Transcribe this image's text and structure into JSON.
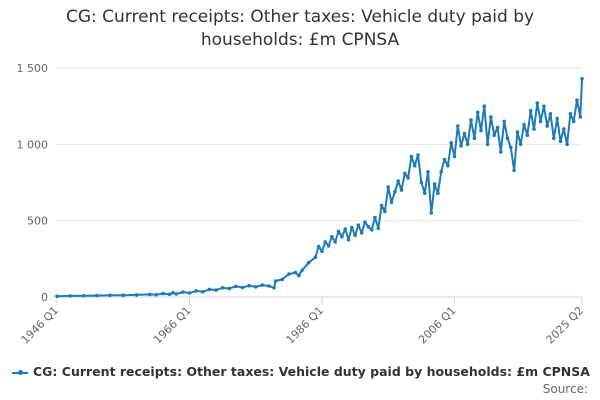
{
  "chart_data": {
    "type": "line",
    "title_line1": "CG: Current receipts: Other taxes: Vehicle duty paid by",
    "title_line2": "households: £m CPNSA",
    "xlabel": "",
    "ylabel": "",
    "ylim": [
      0,
      1500
    ],
    "yticks": [
      {
        "value": 0,
        "label": "0"
      },
      {
        "value": 500,
        "label": "500"
      },
      {
        "value": 1000,
        "label": "1 000"
      },
      {
        "value": 1500,
        "label": "1 500"
      }
    ],
    "xlim": [
      1946.0,
      2025.25
    ],
    "xticks": [
      {
        "value": 1946.0,
        "label": "1946 Q1"
      },
      {
        "value": 1966.0,
        "label": "1966 Q1"
      },
      {
        "value": 1986.0,
        "label": "1986 Q1"
      },
      {
        "value": 2006.0,
        "label": "2006 Q1"
      },
      {
        "value": 2025.25,
        "label": "2025 Q2"
      }
    ],
    "grid": "horizontal",
    "color": "#1f7ab8",
    "series": [
      {
        "name": "CG: Current receipts: Other taxes: Vehicle duty paid by households: £m CPNSA",
        "points": [
          [
            1946.0,
            5
          ],
          [
            1948.0,
            7
          ],
          [
            1950.0,
            8
          ],
          [
            1952.0,
            9
          ],
          [
            1954.0,
            11
          ],
          [
            1956.0,
            12
          ],
          [
            1958.0,
            14
          ],
          [
            1960.0,
            17
          ],
          [
            1961.0,
            15
          ],
          [
            1962.0,
            22
          ],
          [
            1963.0,
            18
          ],
          [
            1963.5,
            28
          ],
          [
            1964.0,
            20
          ],
          [
            1965.0,
            32
          ],
          [
            1966.0,
            26
          ],
          [
            1967.0,
            40
          ],
          [
            1968.0,
            34
          ],
          [
            1969.0,
            50
          ],
          [
            1970.0,
            45
          ],
          [
            1971.0,
            60
          ],
          [
            1972.0,
            55
          ],
          [
            1973.0,
            70
          ],
          [
            1974.0,
            62
          ],
          [
            1975.0,
            74
          ],
          [
            1976.0,
            66
          ],
          [
            1977.0,
            78
          ],
          [
            1978.0,
            72
          ],
          [
            1978.75,
            60
          ],
          [
            1979.0,
            105
          ],
          [
            1980.0,
            115
          ],
          [
            1981.0,
            150
          ],
          [
            1982.0,
            160
          ],
          [
            1982.5,
            140
          ],
          [
            1983.0,
            175
          ],
          [
            1984.0,
            225
          ],
          [
            1985.0,
            260
          ],
          [
            1985.5,
            330
          ],
          [
            1986.0,
            300
          ],
          [
            1986.5,
            360
          ],
          [
            1987.0,
            335
          ],
          [
            1987.5,
            395
          ],
          [
            1988.0,
            360
          ],
          [
            1988.5,
            430
          ],
          [
            1989.0,
            395
          ],
          [
            1989.5,
            445
          ],
          [
            1990.0,
            375
          ],
          [
            1990.5,
            455
          ],
          [
            1991.0,
            405
          ],
          [
            1991.5,
            470
          ],
          [
            1992.0,
            420
          ],
          [
            1992.5,
            490
          ],
          [
            1993.0,
            460
          ],
          [
            1993.5,
            440
          ],
          [
            1994.0,
            520
          ],
          [
            1994.5,
            450
          ],
          [
            1995.0,
            600
          ],
          [
            1995.5,
            560
          ],
          [
            1996.0,
            720
          ],
          [
            1996.5,
            620
          ],
          [
            1997.0,
            690
          ],
          [
            1997.5,
            760
          ],
          [
            1998.0,
            700
          ],
          [
            1998.5,
            810
          ],
          [
            1999.0,
            780
          ],
          [
            1999.5,
            920
          ],
          [
            2000.0,
            860
          ],
          [
            2000.5,
            930
          ],
          [
            2001.0,
            750
          ],
          [
            2001.5,
            680
          ],
          [
            2002.0,
            820
          ],
          [
            2002.5,
            550
          ],
          [
            2003.0,
            740
          ],
          [
            2003.5,
            680
          ],
          [
            2004.0,
            820
          ],
          [
            2004.5,
            900
          ],
          [
            2005.0,
            860
          ],
          [
            2005.5,
            1010
          ],
          [
            2006.0,
            920
          ],
          [
            2006.5,
            1120
          ],
          [
            2007.0,
            990
          ],
          [
            2007.5,
            1070
          ],
          [
            2008.0,
            1000
          ],
          [
            2008.5,
            1160
          ],
          [
            2009.0,
            1040
          ],
          [
            2009.5,
            1210
          ],
          [
            2010.0,
            1090
          ],
          [
            2010.5,
            1250
          ],
          [
            2011.0,
            1000
          ],
          [
            2011.5,
            1180
          ],
          [
            2012.0,
            1060
          ],
          [
            2012.5,
            1110
          ],
          [
            2013.0,
            950
          ],
          [
            2013.5,
            1150
          ],
          [
            2014.0,
            1040
          ],
          [
            2014.5,
            980
          ],
          [
            2015.0,
            830
          ],
          [
            2015.5,
            1080
          ],
          [
            2016.0,
            1000
          ],
          [
            2016.5,
            1130
          ],
          [
            2017.0,
            1060
          ],
          [
            2017.5,
            1220
          ],
          [
            2018.0,
            1100
          ],
          [
            2018.5,
            1270
          ],
          [
            2019.0,
            1150
          ],
          [
            2019.5,
            1250
          ],
          [
            2020.0,
            1120
          ],
          [
            2020.5,
            1200
          ],
          [
            2021.0,
            1040
          ],
          [
            2021.5,
            1170
          ],
          [
            2022.0,
            1020
          ],
          [
            2022.5,
            1100
          ],
          [
            2023.0,
            1000
          ],
          [
            2023.5,
            1200
          ],
          [
            2024.0,
            1150
          ],
          [
            2024.5,
            1290
          ],
          [
            2025.0,
            1180
          ],
          [
            2025.25,
            1430
          ]
        ]
      }
    ],
    "legend_label": "CG: Current receipts: Other taxes: Vehicle duty paid by households: £m CPNSA",
    "source_label": "Source:"
  }
}
